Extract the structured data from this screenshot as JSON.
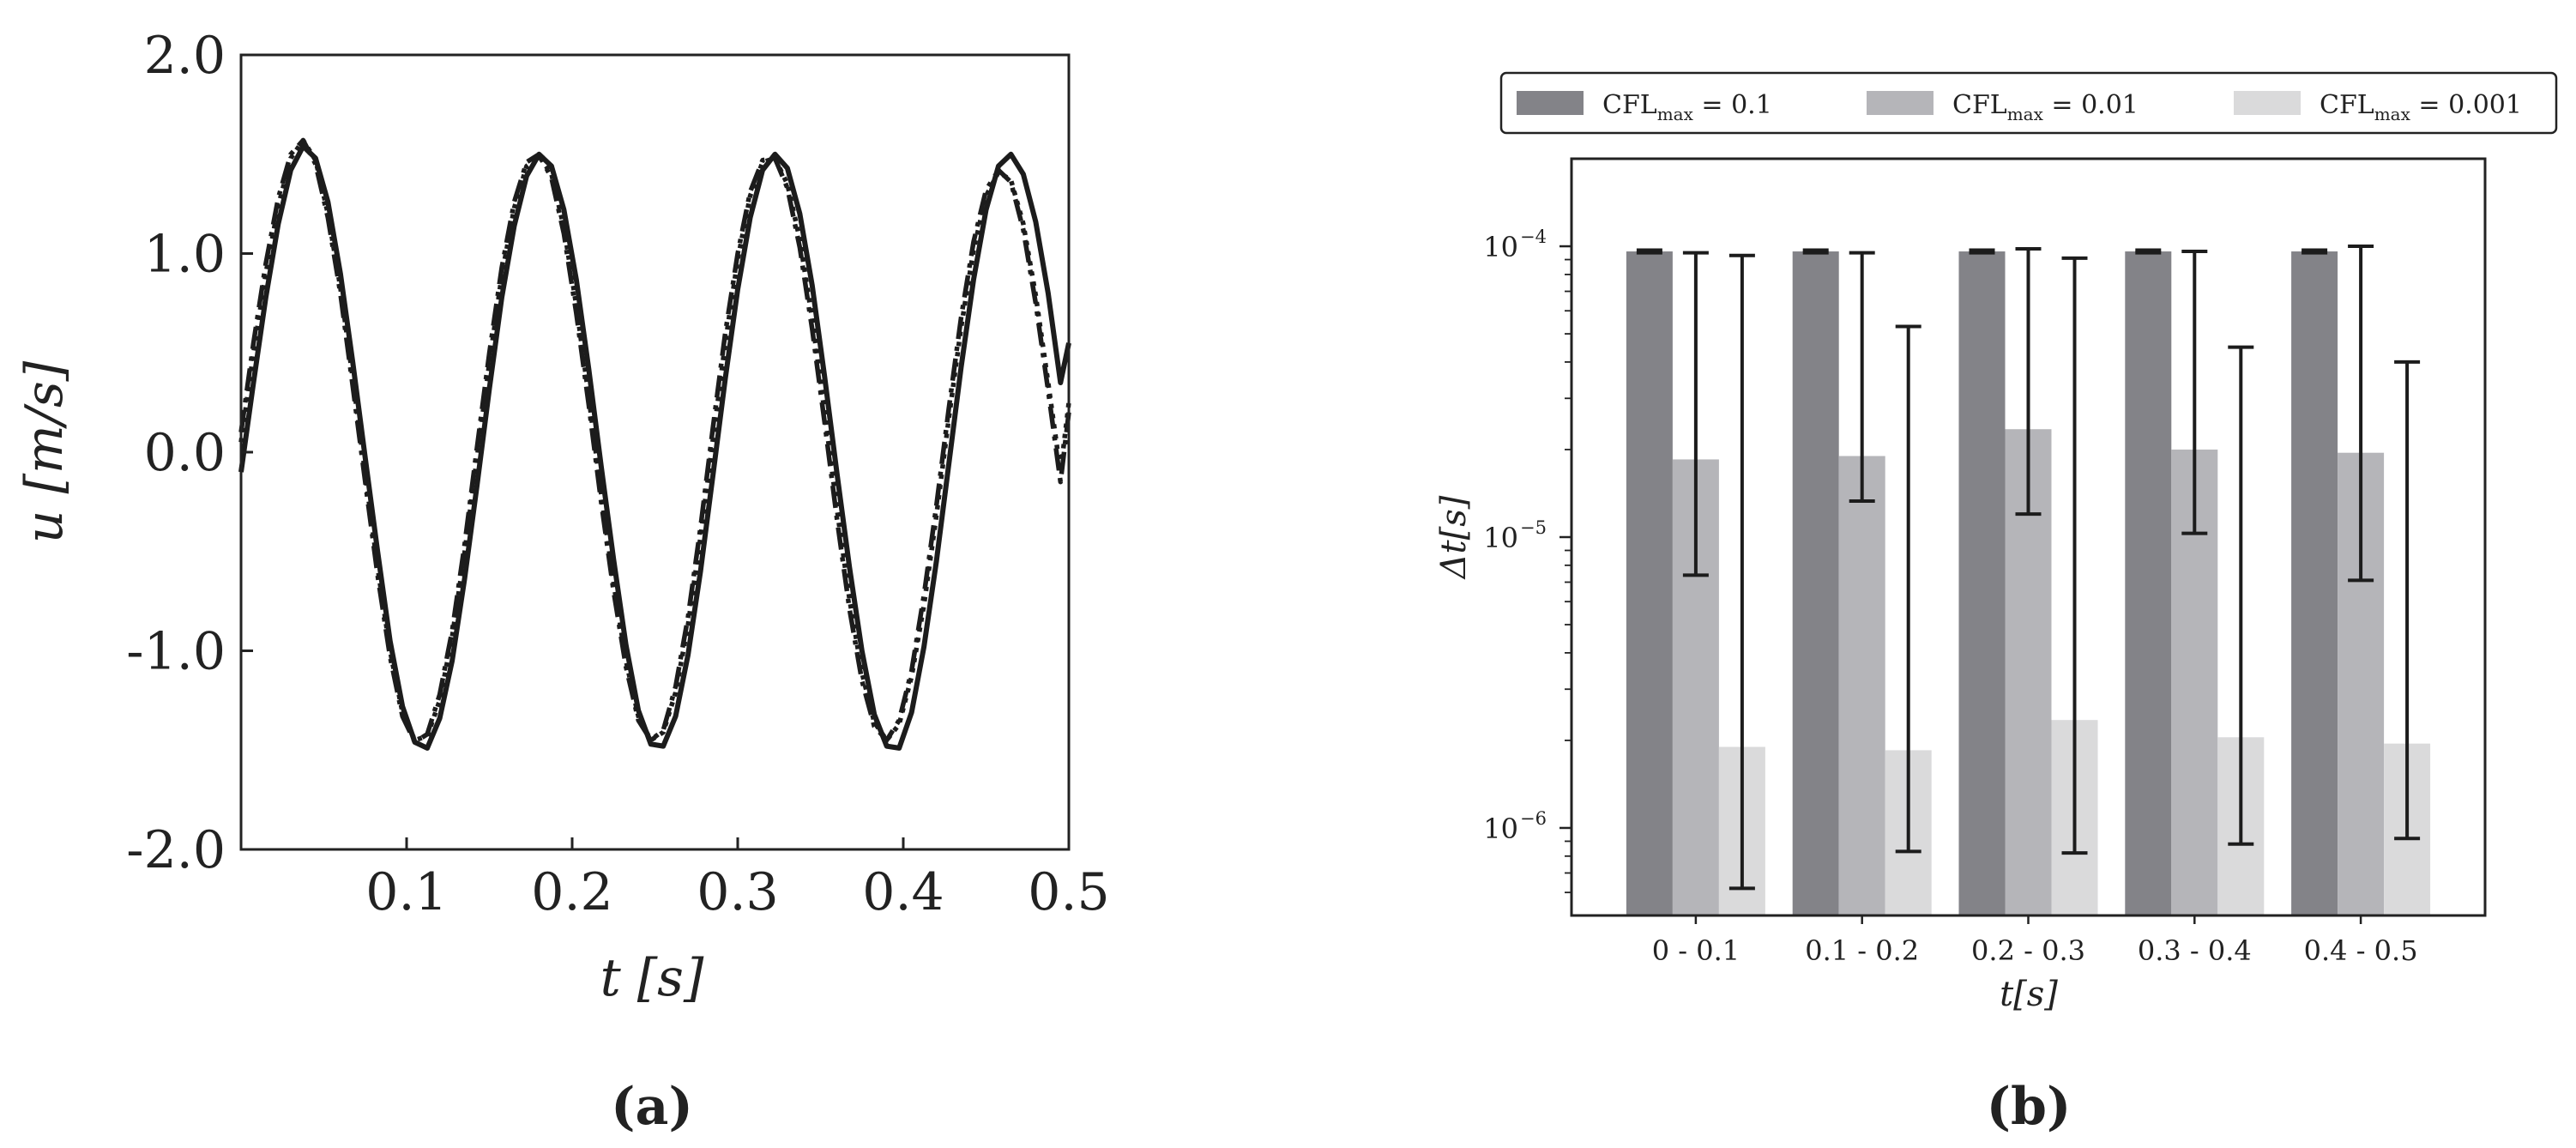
{
  "chart_data": [
    {
      "type": "line",
      "panel_label": "(a)",
      "xlabel": "t [s]",
      "ylabel": "u [m/s]",
      "xlim": [
        0,
        0.5
      ],
      "ylim": [
        -2.0,
        2.0
      ],
      "x_ticks": [
        0.1,
        0.2,
        0.3,
        0.4,
        0.5
      ],
      "x_tick_labels": [
        "0.1",
        "0.2",
        "0.3",
        "0.4",
        "0.5"
      ],
      "y_ticks": [
        -2.0,
        -1.0,
        0.0,
        1.0,
        2.0
      ],
      "y_tick_labels": [
        "-2.0",
        "-1.0",
        "0.0",
        "1.0",
        "2.0"
      ],
      "grid": false,
      "series": [
        {
          "style": "solid",
          "x": [
            0,
            0.0075,
            0.015,
            0.0225,
            0.03,
            0.0375,
            0.045,
            0.0525,
            0.06,
            0.0675,
            0.075,
            0.0825,
            0.09,
            0.0975,
            0.105,
            0.1125,
            0.12,
            0.1275,
            0.135,
            0.1425,
            0.15,
            0.1575,
            0.165,
            0.1725,
            0.18,
            0.1875,
            0.195,
            0.2025,
            0.21,
            0.2175,
            0.225,
            0.2325,
            0.24,
            0.2475,
            0.255,
            0.2625,
            0.27,
            0.2775,
            0.285,
            0.2925,
            0.3,
            0.3075,
            0.315,
            0.3225,
            0.33,
            0.3375,
            0.345,
            0.3525,
            0.36,
            0.3675,
            0.375,
            0.3825,
            0.39,
            0.3975,
            0.405,
            0.4125,
            0.42,
            0.4275,
            0.435,
            0.4425,
            0.45,
            0.4575,
            0.465,
            0.4725,
            0.48,
            0.4875,
            0.495,
            0.5
          ],
          "y": [
            -0.1,
            0.35,
            0.78,
            1.15,
            1.42,
            1.54,
            1.48,
            1.26,
            0.9,
            0.45,
            -0.03,
            -0.5,
            -0.95,
            -1.28,
            -1.46,
            -1.49,
            -1.34,
            -1.05,
            -0.64,
            -0.17,
            0.32,
            0.78,
            1.14,
            1.39,
            1.5,
            1.44,
            1.22,
            0.87,
            0.42,
            -0.07,
            -0.54,
            -0.97,
            -1.3,
            -1.47,
            -1.48,
            -1.33,
            -1.02,
            -0.6,
            -0.12,
            0.37,
            0.82,
            1.18,
            1.42,
            1.5,
            1.43,
            1.2,
            0.84,
            0.38,
            -0.11,
            -0.58,
            -1.0,
            -1.32,
            -1.48,
            -1.49,
            -1.31,
            -0.98,
            -0.55,
            -0.06,
            0.43,
            0.87,
            1.22,
            1.44,
            1.5,
            1.4,
            1.16,
            0.8,
            0.35,
            0.55
          ]
        },
        {
          "style": "dashdot",
          "x": [
            0,
            0.0075,
            0.015,
            0.0225,
            0.03,
            0.0375,
            0.045,
            0.0525,
            0.06,
            0.0675,
            0.075,
            0.0825,
            0.09,
            0.0975,
            0.105,
            0.1125,
            0.12,
            0.1275,
            0.135,
            0.1425,
            0.15,
            0.1575,
            0.165,
            0.1725,
            0.18,
            0.1875,
            0.195,
            0.2025,
            0.21,
            0.2175,
            0.225,
            0.2325,
            0.24,
            0.2475,
            0.255,
            0.2625,
            0.27,
            0.2775,
            0.285,
            0.2925,
            0.3,
            0.3075,
            0.315,
            0.3225,
            0.33,
            0.3375,
            0.345,
            0.3525,
            0.36,
            0.3675,
            0.375,
            0.3825,
            0.39,
            0.3975,
            0.405,
            0.4125,
            0.42,
            0.4275,
            0.435,
            0.4425,
            0.45,
            0.4575,
            0.465,
            0.4725,
            0.48,
            0.4875,
            0.495,
            0.5
          ],
          "y": [
            0.1,
            0.55,
            0.95,
            1.28,
            1.5,
            1.57,
            1.45,
            1.18,
            0.8,
            0.33,
            -0.15,
            -0.62,
            -1.03,
            -1.33,
            -1.46,
            -1.42,
            -1.22,
            -0.9,
            -0.47,
            0.02,
            0.5,
            0.93,
            1.26,
            1.46,
            1.5,
            1.38,
            1.1,
            0.7,
            0.24,
            -0.25,
            -0.7,
            -1.08,
            -1.35,
            -1.45,
            -1.4,
            -1.18,
            -0.83,
            -0.38,
            0.12,
            0.6,
            1.0,
            1.31,
            1.47,
            1.48,
            1.33,
            1.03,
            0.62,
            0.15,
            -0.34,
            -0.79,
            -1.15,
            -1.38,
            -1.45,
            -1.35,
            -1.1,
            -0.72,
            -0.27,
            0.22,
            0.68,
            1.06,
            1.32,
            1.42,
            1.36,
            1.12,
            0.75,
            0.31,
            -0.15,
            0.2
          ]
        },
        {
          "style": "dotted",
          "x": [
            0,
            0.0075,
            0.015,
            0.0225,
            0.03,
            0.0375,
            0.045,
            0.0525,
            0.06,
            0.0675,
            0.075,
            0.0825,
            0.09,
            0.0975,
            0.105,
            0.1125,
            0.12,
            0.1275,
            0.135,
            0.1425,
            0.15,
            0.1575,
            0.165,
            0.1725,
            0.18,
            0.1875,
            0.195,
            0.2025,
            0.21,
            0.2175,
            0.225,
            0.2325,
            0.24,
            0.2475,
            0.255,
            0.2625,
            0.27,
            0.2775,
            0.285,
            0.2925,
            0.3,
            0.3075,
            0.315,
            0.3225,
            0.33,
            0.3375,
            0.345,
            0.3525,
            0.36,
            0.3675,
            0.375,
            0.3825,
            0.39,
            0.3975,
            0.405,
            0.4125,
            0.42,
            0.4275,
            0.435,
            0.4425,
            0.45,
            0.4575,
            0.465,
            0.4725,
            0.48,
            0.4875,
            0.495,
            0.5
          ],
          "y": [
            0.05,
            0.5,
            0.9,
            1.24,
            1.48,
            1.57,
            1.47,
            1.2,
            0.83,
            0.37,
            -0.11,
            -0.58,
            -1.0,
            -1.31,
            -1.45,
            -1.43,
            -1.25,
            -0.93,
            -0.51,
            -0.03,
            0.45,
            0.89,
            1.23,
            1.44,
            1.49,
            1.4,
            1.13,
            0.74,
            0.28,
            -0.21,
            -0.66,
            -1.05,
            -1.33,
            -1.45,
            -1.41,
            -1.21,
            -0.87,
            -0.43,
            0.06,
            0.55,
            0.97,
            1.29,
            1.46,
            1.48,
            1.35,
            1.07,
            0.67,
            0.2,
            -0.29,
            -0.74,
            -1.11,
            -1.36,
            -1.45,
            -1.37,
            -1.13,
            -0.77,
            -0.32,
            0.17,
            0.63,
            1.02,
            1.29,
            1.41,
            1.37,
            1.15,
            0.79,
            0.35,
            -0.1,
            0.25
          ]
        }
      ]
    },
    {
      "type": "bar",
      "panel_label": "(b)",
      "xlabel": "t[s]",
      "ylabel": "Δt[s]",
      "yscale": "log",
      "ylim": [
        5e-07,
        0.0002
      ],
      "y_ticks": [
        1e-06,
        1e-05,
        0.0001
      ],
      "y_tick_labels": [
        {
          "base": "10",
          "exp": "−6"
        },
        {
          "base": "10",
          "exp": "−5"
        },
        {
          "base": "10",
          "exp": "−4"
        }
      ],
      "categories": [
        "0 - 0.1",
        "0.1 - 0.2",
        "0.2 - 0.3",
        "0.3 - 0.4",
        "0.4 - 0.5"
      ],
      "legend_position": "top, outside, horizontal",
      "grid": false,
      "series": [
        {
          "legend": {
            "main": "CFL",
            "sub": "max",
            "rest": " = 0.1"
          },
          "color": "#838388",
          "values": [
            9.6e-05,
            9.6e-05,
            9.6e-05,
            9.6e-05,
            9.6e-05
          ],
          "err_low": [
            9.5e-05,
            9.5e-05,
            9.5e-05,
            9.5e-05,
            9.5e-05
          ],
          "err_high": [
            9.7e-05,
            9.7e-05,
            9.7e-05,
            9.7e-05,
            9.7e-05
          ]
        },
        {
          "legend": {
            "main": "CFL",
            "sub": "max",
            "rest": " = 0.01"
          },
          "color": "#b5b5b9",
          "values": [
            1.85e-05,
            1.9e-05,
            2.35e-05,
            2e-05,
            1.95e-05
          ],
          "err_low": [
            7.4e-06,
            1.33e-05,
            1.2e-05,
            1.03e-05,
            7.1e-06
          ],
          "err_high": [
            9.5e-05,
            9.5e-05,
            9.8e-05,
            9.6e-05,
            0.0001
          ]
        },
        {
          "legend": {
            "main": "CFL",
            "sub": "max",
            "rest": " = 0.001"
          },
          "color": "#dadadb",
          "values": [
            1.9e-06,
            1.85e-06,
            2.35e-06,
            2.05e-06,
            1.95e-06
          ],
          "err_low": [
            6.2e-07,
            8.3e-07,
            8.2e-07,
            8.8e-07,
            9.2e-07
          ],
          "err_high": [
            9.3e-05,
            5.3e-05,
            9.1e-05,
            4.5e-05,
            4e-05
          ]
        }
      ]
    }
  ]
}
